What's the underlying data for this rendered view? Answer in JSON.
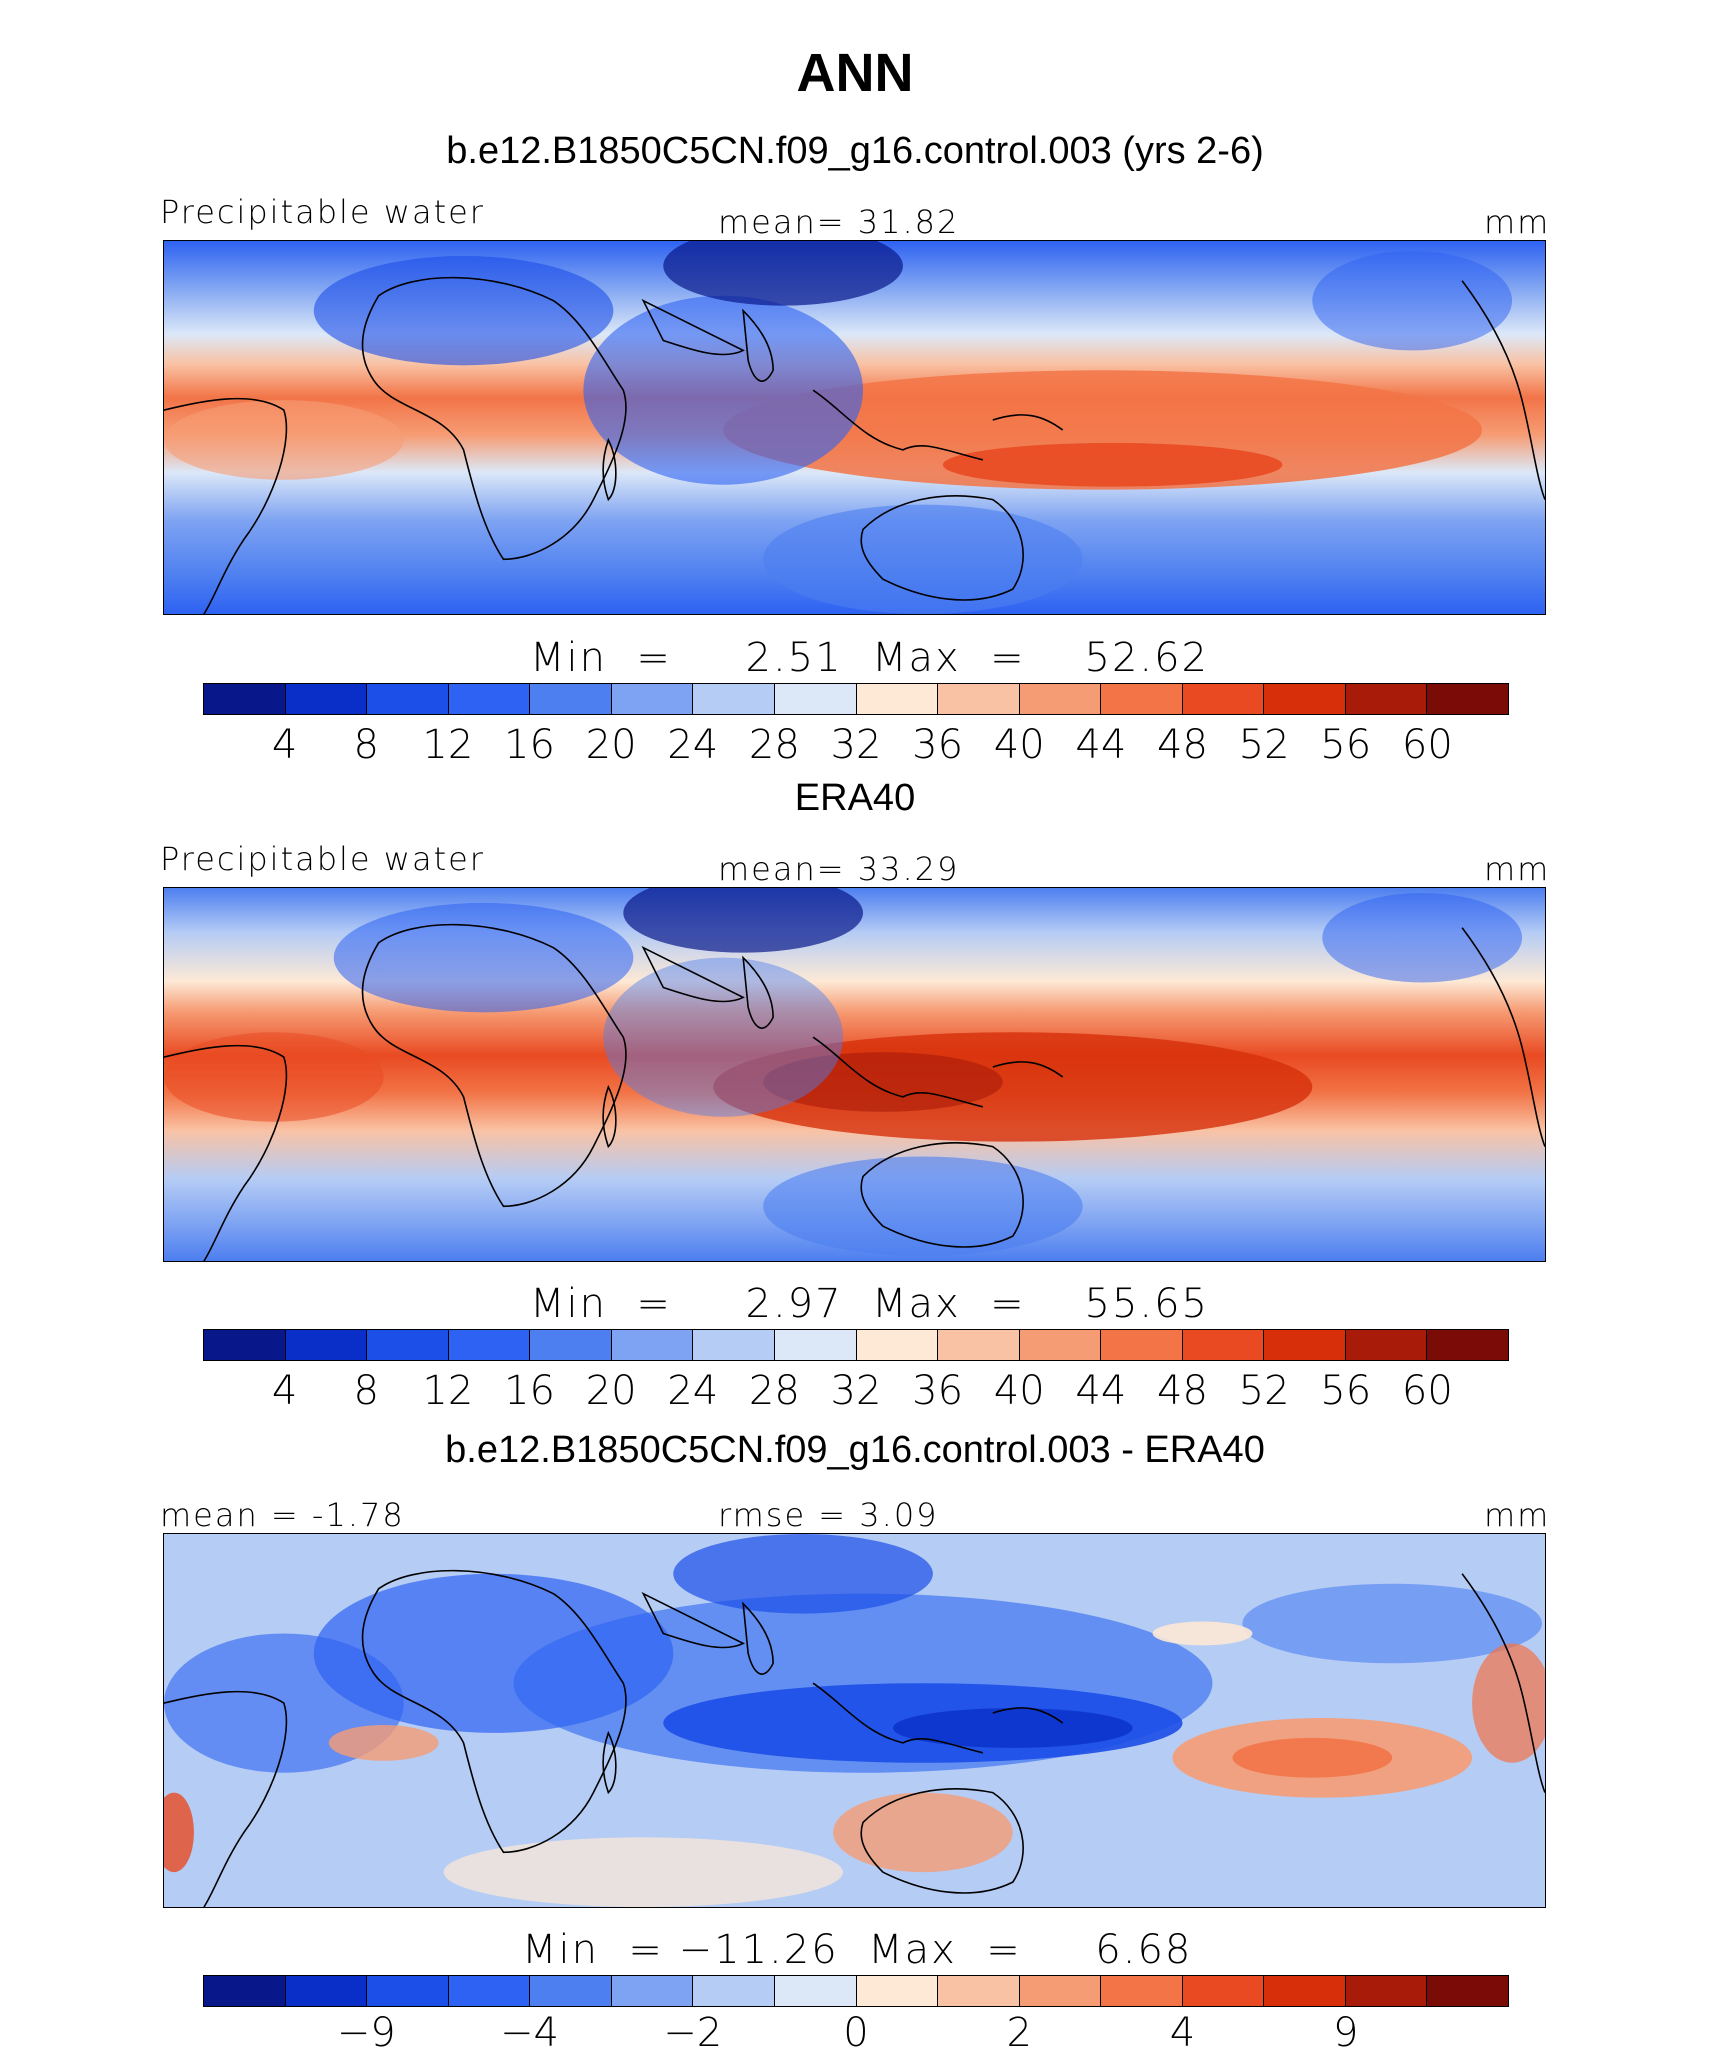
{
  "title": "ANN",
  "palette": [
    "#08188a",
    "#0a2fc8",
    "#1c4ee8",
    "#2e62f2",
    "#4d7ff0",
    "#7ea3f2",
    "#b5ccf5",
    "#dce8f8",
    "#fde9d6",
    "#f9c2a4",
    "#f69c74",
    "#f27447",
    "#e94a22",
    "#d62f0a",
    "#a81b08",
    "#7a0b06"
  ],
  "panels": [
    {
      "title": "b.e12.B1850C5CN.f09_g16.control.003 (yrs 2-6)",
      "left_label": "Precipitable water",
      "center_label": "mean=   31.82",
      "right_label": "mm",
      "min_max_text": "Min  =     2.51  Max  =    52.62",
      "ticks": [
        "4",
        "8",
        "12",
        "16",
        "20",
        "24",
        "28",
        "32",
        "36",
        "40",
        "44",
        "48",
        "52",
        "56",
        "60"
      ]
    },
    {
      "title": "ERA40",
      "left_label": "Precipitable water",
      "center_label": "mean=   33.29",
      "right_label": "mm",
      "min_max_text": "Min  =     2.97  Max  =    55.65",
      "ticks": [
        "4",
        "8",
        "12",
        "16",
        "20",
        "24",
        "28",
        "32",
        "36",
        "40",
        "44",
        "48",
        "52",
        "56",
        "60"
      ]
    },
    {
      "title": "b.e12.B1850C5CN.f09_g16.control.003 - ERA40",
      "left_label": "mean =  -1.78",
      "center_label": "rmse =      3.09",
      "right_label": "mm",
      "min_max_text": "Min  = −11.26  Max  =     6.68",
      "ticks": [
        "−9",
        "−4",
        "−2",
        "0",
        "2",
        "4",
        "9"
      ]
    }
  ]
}
